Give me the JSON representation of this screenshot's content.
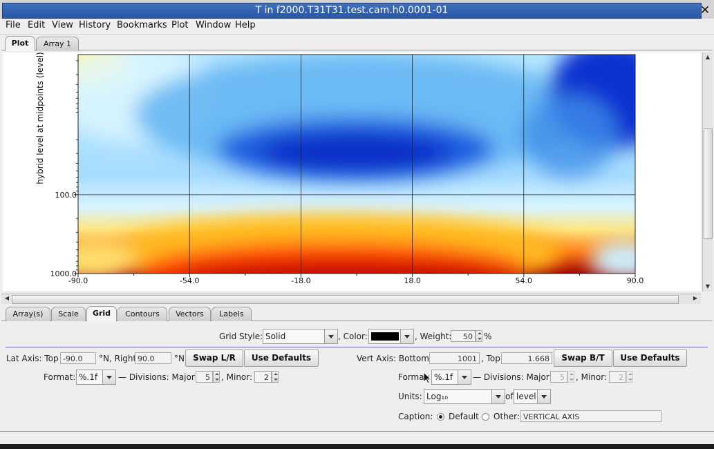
{
  "window": {
    "title": "T in f2000.T31T31.test.cam.h0.0001-01"
  },
  "menu": [
    "File",
    "Edit",
    "View",
    "History",
    "Bookmarks",
    "Plot",
    "Window",
    "Help"
  ],
  "top_tabs": [
    "Plot",
    "Array 1"
  ],
  "bottom_tabs": [
    "Array(s)",
    "Scale",
    "Grid",
    "Contours",
    "Vectors",
    "Labels"
  ],
  "plot": {
    "ylabel": "hybrid level at midpoints (level)",
    "x_ticks": [
      "-90.0",
      "-54.0",
      "-18.0",
      "18.0",
      "54.0",
      "90.0"
    ],
    "y_ticks": [
      "100.0",
      "1000.0"
    ]
  },
  "chart_data": {
    "type": "heatmap",
    "xlabel": "",
    "ylabel": "hybrid level at midpoints (level)",
    "x_tick_labels": [
      "-90.0",
      "-54.0",
      "-18.0",
      "18.0",
      "54.0",
      "90.0"
    ],
    "y_tick_labels": [
      "100.0",
      "1000.0"
    ],
    "xlim": [
      -90,
      90
    ],
    "ylim": [
      1001,
      1.668
    ],
    "y_scale": "log",
    "grid": true,
    "colormap": [
      "#8b0000",
      "#ff2a00",
      "#ffcc33",
      "#ffffcc",
      "#c8f0ff",
      "#55b0f0",
      "#0a2fd0"
    ]
  },
  "grid_style": {
    "label": "Grid Style:",
    "value": "Solid",
    "color_label": ", Color:",
    "weight_label": ", Weight:",
    "weight_value": "50",
    "weight_unit": "%"
  },
  "lat_axis": {
    "label": "Lat Axis: Top",
    "top_value": "-90.0",
    "right_label": "°N, Right",
    "right_value": "90.0",
    "unit": "°N",
    "swap_button": "Swap L/R",
    "defaults_button": "Use Defaults",
    "format_label": "Format:",
    "format_value": "%.1f",
    "divisions_label": "— Divisions: Major:",
    "major_value": "5",
    "minor_label": ", Minor:",
    "minor_value": "2"
  },
  "vert_axis": {
    "label": "Vert Axis: Bottom",
    "bottom_value": "1001",
    "top_label": ", Top",
    "top_value": "1.668",
    "swap_button": "Swap B/T",
    "defaults_button": "Use Defaults",
    "format_label": "Format:",
    "format_value": "%.1f",
    "divisions_label": "— Divisions: Major:",
    "major_value": "5",
    "minor_label": ", Minor:",
    "minor_value": "2",
    "units_label": "Units:",
    "units_value": "Log₁₀",
    "of_label": "of",
    "of_value": "level",
    "caption_label": "Caption:",
    "caption_default": "Default",
    "caption_other": "Other:",
    "caption_value": "VERTICAL AXIS"
  }
}
